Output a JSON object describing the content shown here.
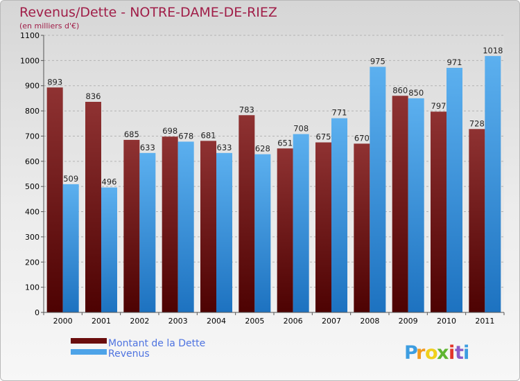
{
  "chart_data": {
    "type": "bar",
    "title": "Revenus/Dette - NOTRE-DAME-DE-RIEZ",
    "subtitle": "(en milliers d'€)",
    "categories": [
      "2000",
      "2001",
      "2002",
      "2003",
      "2004",
      "2005",
      "2006",
      "2007",
      "2008",
      "2009",
      "2010",
      "2011"
    ],
    "series": [
      {
        "name": "Montant de la Dette",
        "color": "#7a1f1f",
        "values": [
          893,
          836,
          685,
          698,
          681,
          783,
          651,
          675,
          670,
          860,
          797,
          728
        ]
      },
      {
        "name": "Revenus",
        "color": "#4da3e8",
        "values": [
          509,
          496,
          633,
          678,
          633,
          628,
          708,
          771,
          975,
          850,
          971,
          1018
        ]
      }
    ],
    "ylim": [
      0,
      1100
    ],
    "yticks": [
      0,
      100,
      200,
      300,
      400,
      500,
      600,
      700,
      800,
      900,
      1000,
      1100
    ],
    "grid": true,
    "legend_position": "bottom-left"
  },
  "brand": {
    "letters": [
      "P",
      "r",
      "o",
      "x",
      "i",
      "t",
      "i"
    ],
    "colors": [
      "#3d9de0",
      "#f29a1c",
      "#f0d01c",
      "#5fb531",
      "#e2352a",
      "#8b5cc8",
      "#3d9de0"
    ]
  }
}
